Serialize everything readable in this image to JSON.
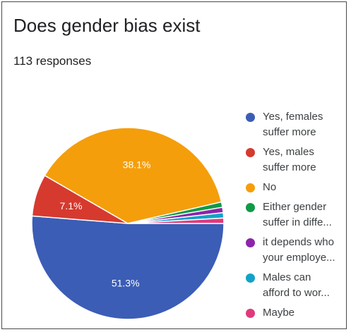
{
  "title": "Does gender bias exist",
  "subtitle": "113 responses",
  "chart_data": {
    "type": "pie",
    "title": "Does gender bias exist",
    "slices": [
      {
        "label": "Yes, females\nsuffer more",
        "value": 51.3,
        "display": "51.3%",
        "color": "#3b5db5"
      },
      {
        "label": "Yes, males\nsuffer more",
        "value": 7.1,
        "display": "7.1%",
        "color": "#d63a2f"
      },
      {
        "label": "No",
        "value": 38.1,
        "display": "38.1%",
        "color": "#f59e0b"
      },
      {
        "label": "Either gender\nsuffer in diffe...",
        "value": 0.9,
        "display": "",
        "color": "#109a47"
      },
      {
        "label": "it depends who\nyour employe...",
        "value": 0.9,
        "display": "",
        "color": "#8e24aa"
      },
      {
        "label": "Males can\nafford to wor...",
        "value": 0.9,
        "display": "",
        "color": "#12a2c9"
      },
      {
        "label": "Maybe",
        "value": 0.9,
        "display": "",
        "color": "#e03a7c"
      }
    ],
    "legend_position": "right"
  }
}
